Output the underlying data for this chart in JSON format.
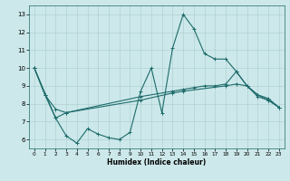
{
  "xlabel": "Humidex (Indice chaleur)",
  "bg_color": "#cce8ea",
  "grid_color": "#aacccc",
  "line_color": "#1e6b6b",
  "xlim": [
    -0.5,
    23.5
  ],
  "ylim": [
    5.5,
    13.5
  ],
  "xticks": [
    0,
    1,
    2,
    3,
    4,
    5,
    6,
    7,
    8,
    9,
    10,
    11,
    12,
    13,
    14,
    15,
    16,
    17,
    18,
    19,
    20,
    21,
    22,
    23
  ],
  "yticks": [
    6,
    7,
    8,
    9,
    10,
    11,
    12,
    13
  ],
  "line1_x": [
    0,
    1,
    2,
    3,
    4,
    5,
    6,
    7,
    8,
    9,
    10,
    11,
    12,
    13,
    14,
    15,
    16,
    17,
    18,
    19,
    20,
    21,
    22,
    23
  ],
  "line1_y": [
    10.0,
    8.5,
    7.2,
    6.2,
    5.8,
    6.6,
    6.3,
    6.1,
    6.0,
    6.4,
    8.7,
    10.0,
    7.5,
    11.1,
    13.0,
    12.2,
    10.8,
    10.5,
    10.5,
    9.8,
    9.0,
    8.4,
    8.2,
    7.8
  ],
  "line2_x": [
    0,
    1,
    2,
    3,
    10,
    13,
    14,
    15,
    16,
    17,
    18,
    19,
    20,
    21,
    22,
    23
  ],
  "line2_y": [
    10.0,
    8.5,
    7.7,
    7.5,
    8.4,
    8.7,
    8.8,
    8.9,
    9.0,
    9.0,
    9.1,
    9.8,
    9.0,
    8.5,
    8.3,
    7.8
  ],
  "line3_x": [
    0,
    2,
    3,
    10,
    13,
    14,
    18,
    19,
    20,
    21,
    22,
    23
  ],
  "line3_y": [
    10.0,
    7.2,
    7.5,
    8.2,
    8.6,
    8.7,
    9.0,
    9.1,
    9.0,
    8.5,
    8.2,
    7.8
  ]
}
